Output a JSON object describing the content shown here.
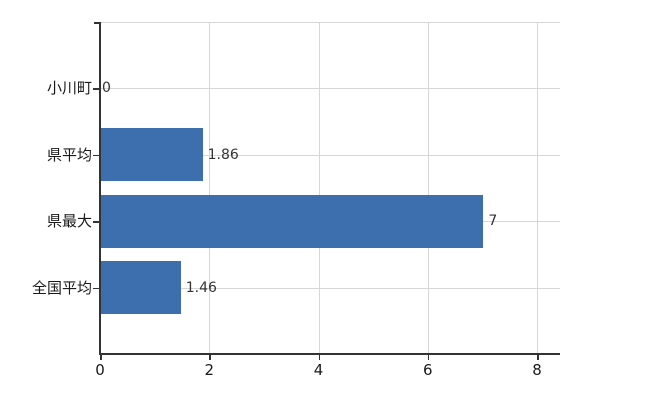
{
  "chart_data": {
    "type": "bar",
    "orientation": "horizontal",
    "title": "",
    "categories": [
      "小川町",
      "県平均",
      "県最大",
      "全国平均"
    ],
    "values": [
      0,
      1.86,
      7,
      1.46
    ],
    "value_labels": [
      "0",
      "1.86",
      "7",
      "1.46"
    ],
    "x_ticks": [
      0,
      2,
      4,
      6,
      8
    ],
    "x_tick_labels": [
      "0",
      "2",
      "4",
      "6",
      "8"
    ],
    "xlim": [
      0,
      8.4
    ],
    "grid": true,
    "legend": false,
    "colors": {
      "bar": "#3d6ead",
      "grid": "#d6d6d6",
      "axis": "#333333",
      "text": "#1a1a1a",
      "value_text": "#333333",
      "background": "#ffffff"
    }
  }
}
